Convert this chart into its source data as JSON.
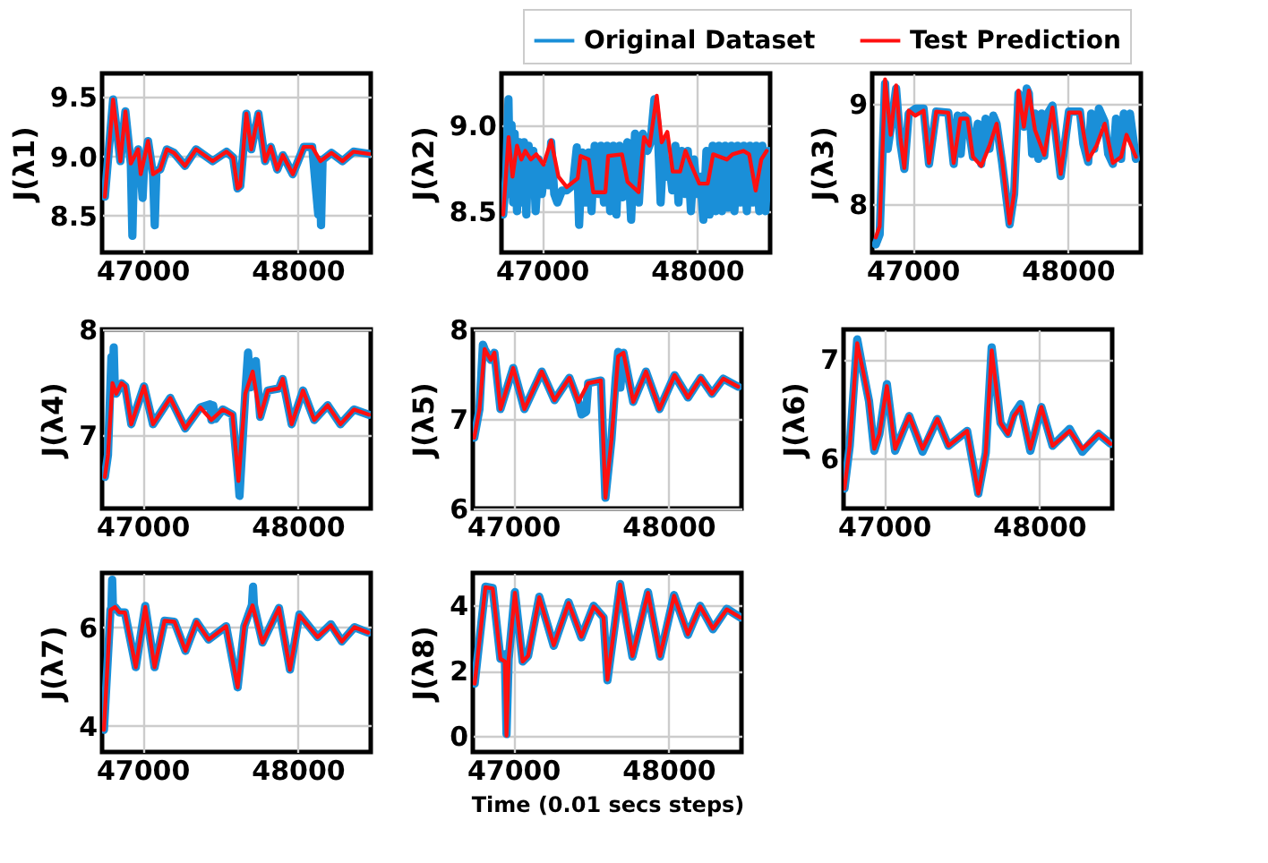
{
  "chart_data": [
    {
      "type": "line",
      "ylabel": "J(λ1)",
      "xlim": [
        46740,
        48470
      ],
      "xticks": [
        47000,
        48000
      ],
      "ylim": [
        8.19,
        9.7
      ],
      "yticks": [
        8.5,
        {
          "value": 9.0,
          "label": "9.0"
        },
        9.5
      ],
      "grid": true,
      "legend": "top right",
      "series": [
        {
          "name": "Original Dataset",
          "color": "#1a8fd8",
          "x": [
            46758,
            46811,
            46858,
            46890,
            46925,
            46935,
            46945,
            46972,
            46989,
            47001,
            47010,
            47036,
            47068,
            47079,
            47090,
            47114,
            47157,
            47203,
            47274,
            47345,
            47452,
            47541,
            47584,
            47612,
            47630,
            47669,
            47701,
            47747,
            47790,
            47826,
            47868,
            47904,
            47968,
            48039,
            48093,
            48132,
            48140,
            48150,
            48160,
            48217,
            48288,
            48359,
            48466
          ],
          "values": [
            8.66,
            9.48,
            8.96,
            9.38,
            8.94,
            8.33,
            8.9,
            9.06,
            8.85,
            8.65,
            8.9,
            9.13,
            8.85,
            8.42,
            8.88,
            8.89,
            9.06,
            9.03,
            8.92,
            9.06,
            8.96,
            9.04,
            8.99,
            8.73,
            8.75,
            9.36,
            9.06,
            9.36,
            8.96,
            9.08,
            8.89,
            9.01,
            8.85,
            9.08,
            9.08,
            8.51,
            8.97,
            8.42,
            8.97,
            9.03,
            8.96,
            9.04,
            9.02
          ]
        },
        {
          "name": "Test Prediction",
          "color": "#ff1010",
          "x": [
            46758,
            46811,
            46858,
            46890,
            46925,
            46972,
            46989,
            47036,
            47068,
            47114,
            47157,
            47203,
            47274,
            47345,
            47452,
            47541,
            47584,
            47612,
            47630,
            47669,
            47701,
            47747,
            47790,
            47826,
            47868,
            47904,
            47968,
            48039,
            48093,
            48146,
            48217,
            48288,
            48359,
            48466
          ],
          "values": [
            8.66,
            9.48,
            8.96,
            9.38,
            8.94,
            9.06,
            8.85,
            9.13,
            8.85,
            8.89,
            9.06,
            9.03,
            8.92,
            9.06,
            8.96,
            9.04,
            8.99,
            8.73,
            8.75,
            9.36,
            9.06,
            9.36,
            8.96,
            9.08,
            8.89,
            9.01,
            8.85,
            9.08,
            9.08,
            8.96,
            9.03,
            8.96,
            9.04,
            9.02
          ]
        }
      ]
    },
    {
      "type": "line",
      "ylabel": "J(λ2)",
      "xlim": [
        46740,
        48470
      ],
      "xticks": [
        47000,
        48000
      ],
      "ylim": [
        8.26,
        9.3
      ],
      "yticks": [
        8.5,
        {
          "value": 9.0,
          "label": "9.0"
        }
      ],
      "grid": true,
      "series": [
        {
          "color": "#1a8fd8",
          "x": [
            46751,
            46770,
            46785,
            46795,
            46805,
            46815,
            46825,
            46840,
            46855,
            46870,
            46885,
            46900,
            46915,
            46930,
            46945,
            46960,
            46980,
            47000,
            47020,
            47045,
            47060,
            47080,
            47100,
            47130,
            47160,
            47200,
            47225,
            47240,
            47260,
            47280,
            47300,
            47320,
            47340,
            47360,
            47380,
            47400,
            47420,
            47440,
            47460,
            47480,
            47500,
            47520,
            47550,
            47575,
            47600,
            47625,
            47650,
            47680,
            47700,
            47725,
            47745,
            47765,
            47785,
            47800,
            47820,
            47840,
            47860,
            47880,
            47900,
            47920,
            47940,
            47960,
            47980,
            48000,
            48020,
            48040,
            48060,
            48080,
            48100,
            48120,
            48140,
            48160,
            48180,
            48200,
            48220,
            48240,
            48260,
            48280,
            48300,
            48320,
            48340,
            48360,
            48380,
            48400,
            48420,
            48440,
            48460
          ],
          "values": [
            8.48,
            8.7,
            9.15,
            8.6,
            9.0,
            8.55,
            8.95,
            8.5,
            8.9,
            8.55,
            8.9,
            8.48,
            8.88,
            8.6,
            8.85,
            8.5,
            8.8,
            8.6,
            8.75,
            8.65,
            8.9,
            8.6,
            8.55,
            8.62,
            8.62,
            8.65,
            8.87,
            8.42,
            8.84,
            8.55,
            8.84,
            8.5,
            8.88,
            8.6,
            8.88,
            8.55,
            8.88,
            8.5,
            8.88,
            8.48,
            8.88,
            8.58,
            8.9,
            8.45,
            8.95,
            8.55,
            8.95,
            8.85,
            8.9,
            9.15,
            9.0,
            8.55,
            8.9,
            8.7,
            8.78,
            8.62,
            8.88,
            8.55,
            8.85,
            8.6,
            8.85,
            8.5,
            8.8,
            8.6,
            8.7,
            8.45,
            8.85,
            8.48,
            8.88,
            8.5,
            8.88,
            8.5,
            8.88,
            8.52,
            8.88,
            8.5,
            8.88,
            8.55,
            8.88,
            8.5,
            8.88,
            8.55,
            8.88,
            8.5,
            8.88,
            8.5,
            8.85
          ]
        },
        {
          "color": "#ff1010",
          "x": [
            46751,
            46786,
            46811,
            46840,
            46868,
            46893,
            46929,
            46964,
            47011,
            47060,
            47107,
            47160,
            47231,
            47249,
            47302,
            47331,
            47409,
            47427,
            47516,
            47552,
            47623,
            47658,
            47694,
            47740,
            47772,
            47808,
            47843,
            47890,
            47925,
            47961,
            48014,
            48068,
            48103,
            48192,
            48228,
            48299,
            48335,
            48377,
            48413,
            48448
          ],
          "values": [
            8.48,
            8.93,
            8.7,
            8.88,
            8.8,
            8.85,
            8.8,
            8.83,
            8.77,
            8.91,
            8.7,
            8.64,
            8.69,
            8.82,
            8.8,
            8.61,
            8.61,
            8.82,
            8.83,
            8.67,
            8.61,
            8.93,
            8.88,
            9.17,
            8.9,
            8.96,
            8.73,
            8.73,
            8.85,
            8.77,
            8.66,
            8.66,
            8.83,
            8.8,
            8.83,
            8.85,
            8.83,
            8.62,
            8.8,
            8.85
          ]
        }
      ]
    },
    {
      "type": "line",
      "ylabel": "J(λ3)",
      "xlim": [
        46740,
        48470
      ],
      "xticks": [
        47000,
        48000
      ],
      "ylim": [
        7.52,
        9.3
      ],
      "yticks": [
        8,
        9
      ],
      "grid": true,
      "series": [
        {
          "color": "#1a8fd8",
          "x": [
            46763,
            46788,
            46823,
            46840,
            46859,
            46894,
            46922,
            46947,
            46975,
            47018,
            47071,
            47106,
            47152,
            47230,
            47265,
            47290,
            47310,
            47330,
            47353,
            47389,
            47420,
            47442,
            47470,
            47495,
            47520,
            47541,
            47576,
            47625,
            47654,
            47682,
            47717,
            47735,
            47749,
            47770,
            47788,
            47810,
            47830,
            47848,
            47870,
            47901,
            47954,
            48007,
            48078,
            48100,
            48131,
            48150,
            48170,
            48200,
            48237,
            48260,
            48290,
            48310,
            48343,
            48360,
            48378,
            48400,
            48438
          ],
          "values": [
            7.6,
            7.7,
            9.2,
            8.55,
            8.75,
            9.15,
            8.6,
            8.35,
            8.9,
            8.95,
            8.95,
            8.4,
            8.92,
            8.91,
            8.4,
            8.88,
            8.5,
            8.88,
            8.85,
            8.47,
            8.8,
            8.4,
            8.85,
            8.55,
            8.88,
            8.8,
            8.42,
            7.8,
            8.1,
            9.1,
            8.77,
            9.15,
            9.1,
            8.5,
            8.9,
            8.45,
            8.9,
            8.48,
            8.9,
            8.98,
            8.28,
            8.92,
            8.92,
            8.6,
            8.42,
            8.9,
            8.55,
            8.95,
            8.82,
            8.5,
            8.4,
            8.85,
            8.45,
            8.9,
            8.7,
            8.9,
            8.45
          ]
        },
        {
          "color": "#ff1010",
          "x": [
            46763,
            46788,
            46823,
            46859,
            46894,
            46922,
            46947,
            46975,
            47018,
            47071,
            47106,
            47152,
            47230,
            47265,
            47307,
            47353,
            47389,
            47442,
            47495,
            47541,
            47576,
            47625,
            47654,
            47682,
            47717,
            47749,
            47788,
            47848,
            47901,
            47954,
            48007,
            48078,
            48131,
            48184,
            48237,
            48290,
            48343,
            48378,
            48438
          ],
          "values": [
            7.67,
            7.78,
            9.24,
            8.69,
            9.18,
            8.66,
            8.36,
            8.93,
            8.88,
            8.93,
            8.41,
            8.92,
            8.91,
            8.41,
            8.85,
            8.85,
            8.47,
            8.38,
            8.58,
            8.8,
            8.44,
            7.81,
            8.11,
            9.13,
            8.77,
            9.13,
            8.74,
            8.49,
            8.96,
            8.3,
            8.91,
            8.91,
            8.44,
            8.58,
            8.8,
            8.41,
            8.47,
            8.69,
            8.47
          ]
        }
      ]
    },
    {
      "type": "line",
      "ylabel": "J(λ4)",
      "xlim": [
        46740,
        48470
      ],
      "xticks": [
        47000,
        48000
      ],
      "ylim": [
        6.3,
        8.0
      ],
      "yticks": [
        7,
        8
      ],
      "grid": true,
      "series": [
        {
          "color": "#1a8fd8",
          "x": [
            46758,
            46778,
            46800,
            46807,
            46815,
            46822,
            46831,
            46865,
            46889,
            46928,
            47010,
            47068,
            47179,
            47275,
            47372,
            47435,
            47444,
            47455,
            47470,
            47517,
            47580,
            47618,
            47625,
            47662,
            47680,
            47695,
            47710,
            47730,
            47758,
            47807,
            47879,
            47903,
            47961,
            48034,
            48106,
            48193,
            48275,
            48362,
            48459
          ],
          "values": [
            6.6,
            6.81,
            7.74,
            7.45,
            7.83,
            7.45,
            7.39,
            7.49,
            7.46,
            7.1,
            7.46,
            7.1,
            7.35,
            7.06,
            7.26,
            7.29,
            7.14,
            7.28,
            7.15,
            7.24,
            7.19,
            6.56,
            6.42,
            7.39,
            7.78,
            7.45,
            7.6,
            7.7,
            7.17,
            7.42,
            7.44,
            7.53,
            7.1,
            7.42,
            7.14,
            7.28,
            7.1,
            7.24,
            7.19
          ]
        },
        {
          "color": "#ff1010",
          "x": [
            46758,
            46778,
            46807,
            46831,
            46865,
            46889,
            46928,
            47010,
            47068,
            47179,
            47275,
            47372,
            47444,
            47517,
            47580,
            47618,
            47662,
            47710,
            47758,
            47807,
            47879,
            47903,
            47961,
            48034,
            48106,
            48193,
            48275,
            48362,
            48459
          ],
          "values": [
            6.6,
            6.81,
            7.49,
            7.39,
            7.49,
            7.46,
            7.1,
            7.46,
            7.1,
            7.35,
            7.06,
            7.26,
            7.14,
            7.24,
            7.19,
            6.56,
            7.39,
            7.6,
            7.17,
            7.42,
            7.44,
            7.53,
            7.1,
            7.42,
            7.14,
            7.28,
            7.1,
            7.24,
            7.19
          ]
        }
      ]
    },
    {
      "type": "line",
      "ylabel": "J(λ5)",
      "xlim": [
        46740,
        48470
      ],
      "xticks": [
        47000,
        48000
      ],
      "ylim": [
        6,
        8
      ],
      "yticks": [
        6,
        7,
        8
      ],
      "grid": true,
      "series": [
        {
          "color": "#1a8fd8",
          "x": [
            46749,
            46783,
            46805,
            46816,
            46855,
            46879,
            46918,
            47000,
            47072,
            47184,
            47266,
            47362,
            47420,
            47440,
            47470,
            47483,
            47565,
            47594,
            47633,
            47660,
            47676,
            47690,
            47710,
            47773,
            47855,
            47942,
            48039,
            48126,
            48208,
            48280,
            48353,
            48449
          ],
          "values": [
            6.79,
            7.11,
            7.83,
            7.78,
            7.66,
            7.74,
            7.11,
            7.57,
            7.11,
            7.53,
            7.21,
            7.46,
            7.19,
            7.05,
            7.08,
            7.4,
            7.43,
            6.12,
            6.77,
            7.45,
            7.75,
            7.35,
            7.74,
            7.19,
            7.53,
            7.11,
            7.49,
            7.24,
            7.46,
            7.28,
            7.45,
            7.36
          ]
        },
        {
          "color": "#ff1010",
          "x": [
            46749,
            46783,
            46816,
            46855,
            46879,
            46918,
            47000,
            47072,
            47184,
            47266,
            47362,
            47420,
            47483,
            47565,
            47594,
            47633,
            47676,
            47710,
            47773,
            47855,
            47942,
            48039,
            48126,
            48208,
            48280,
            48353,
            48449
          ],
          "values": [
            6.79,
            7.11,
            7.78,
            7.66,
            7.74,
            7.11,
            7.57,
            7.11,
            7.53,
            7.21,
            7.46,
            7.19,
            7.4,
            7.43,
            6.12,
            6.77,
            7.7,
            7.74,
            7.19,
            7.53,
            7.11,
            7.49,
            7.24,
            7.46,
            7.28,
            7.45,
            7.36
          ]
        }
      ]
    },
    {
      "type": "line",
      "ylabel": "J(λ6)",
      "xlim": [
        46740,
        48470
      ],
      "xticks": [
        47000,
        48000
      ],
      "ylim": [
        5.5,
        7.3
      ],
      "yticks": [
        6,
        7
      ],
      "grid": true,
      "series": [
        {
          "color": "#1a8fd8",
          "x": [
            46746,
            46780,
            46828,
            46866,
            46904,
            46938,
            46971,
            47019,
            47072,
            47163,
            47249,
            47344,
            47416,
            47536,
            47608,
            47656,
            47694,
            47751,
            47799,
            47837,
            47880,
            47943,
            48014,
            48086,
            48196,
            48278,
            48383,
            48460
          ],
          "values": [
            5.7,
            6.13,
            7.2,
            6.88,
            6.58,
            6.08,
            6.25,
            6.75,
            6.08,
            6.43,
            6.07,
            6.4,
            6.13,
            6.28,
            5.65,
            6.06,
            7.12,
            6.36,
            6.25,
            6.45,
            6.55,
            6.08,
            6.52,
            6.13,
            6.3,
            6.07,
            6.25,
            6.15
          ]
        },
        {
          "color": "#ff1010",
          "x": [
            46746,
            46780,
            46828,
            46866,
            46904,
            46938,
            46971,
            47019,
            47072,
            47163,
            47249,
            47344,
            47416,
            47536,
            47608,
            47656,
            47694,
            47751,
            47799,
            47837,
            47880,
            47943,
            48014,
            48086,
            48196,
            48278,
            48383,
            48460
          ],
          "values": [
            5.7,
            6.13,
            7.16,
            6.88,
            6.58,
            6.1,
            6.25,
            6.73,
            6.1,
            6.43,
            6.1,
            6.4,
            6.13,
            6.28,
            5.65,
            6.06,
            7.09,
            6.36,
            6.25,
            6.43,
            6.52,
            6.1,
            6.52,
            6.13,
            6.28,
            6.1,
            6.25,
            6.15
          ]
        }
      ]
    },
    {
      "type": "line",
      "ylabel": "J(λ7)",
      "xlim": [
        46740,
        48470
      ],
      "xticks": [
        47000,
        48000
      ],
      "ylim": [
        3.47,
        7.1
      ],
      "yticks": [
        4,
        6
      ],
      "grid": true,
      "series": [
        {
          "color": "#1a8fd8",
          "x": [
            46752,
            46794,
            46800,
            46805,
            46810,
            46823,
            46851,
            46887,
            46957,
            47018,
            47078,
            47142,
            47206,
            47277,
            47348,
            47426,
            47539,
            47613,
            47656,
            47705,
            47712,
            47718,
            47773,
            47879,
            47950,
            48011,
            48128,
            48213,
            48284,
            48365,
            48454
          ],
          "values": [
            3.92,
            6.35,
            6.4,
            6.96,
            6.4,
            6.41,
            6.3,
            6.3,
            5.19,
            6.43,
            5.19,
            6.13,
            6.11,
            5.52,
            6.11,
            5.75,
            6.02,
            4.78,
            6.02,
            6.45,
            6.82,
            6.45,
            5.69,
            6.39,
            5.14,
            6.26,
            5.8,
            6.06,
            5.71,
            6.0,
            5.89
          ]
        },
        {
          "color": "#ff1010",
          "x": [
            46752,
            46794,
            46823,
            46851,
            46887,
            46957,
            47018,
            47078,
            47142,
            47206,
            47277,
            47348,
            47426,
            47539,
            47613,
            47656,
            47709,
            47773,
            47879,
            47950,
            48011,
            48128,
            48213,
            48284,
            48365,
            48454
          ],
          "values": [
            3.92,
            6.35,
            6.41,
            6.3,
            6.3,
            5.19,
            6.41,
            5.19,
            6.13,
            6.11,
            5.52,
            6.11,
            5.75,
            6.02,
            4.78,
            6.02,
            6.44,
            5.69,
            6.39,
            5.14,
            6.24,
            5.8,
            6.04,
            5.71,
            6.0,
            5.89
          ]
        }
      ]
    },
    {
      "type": "line",
      "ylabel": "J(λ8)",
      "xlabel": "Time (0.01 secs steps)",
      "xlim": [
        46740,
        48470
      ],
      "xticks": [
        47000,
        48000
      ],
      "ylim": [
        -0.5,
        5.0
      ],
      "yticks": [
        0,
        2,
        4
      ],
      "grid": true,
      "series": [
        {
          "color": "#1a8fd8",
          "x": [
            46752,
            46821,
            46868,
            46918,
            46946,
            46957,
            46971,
            47011,
            47061,
            47096,
            47168,
            47261,
            47357,
            47439,
            47518,
            47582,
            47607,
            47689,
            47768,
            47868,
            47946,
            48036,
            48125,
            48204,
            48286,
            48375,
            48464
          ],
          "values": [
            1.6,
            4.58,
            4.54,
            2.36,
            2.5,
            0.05,
            2.36,
            4.41,
            2.28,
            2.45,
            4.27,
            2.76,
            4.1,
            3.02,
            3.99,
            3.63,
            1.7,
            4.66,
            2.43,
            4.41,
            2.43,
            4.32,
            3.1,
            3.99,
            3.27,
            3.9,
            3.63
          ]
        },
        {
          "color": "#ff1010",
          "x": [
            46752,
            46821,
            46868,
            46918,
            46946,
            46957,
            46971,
            47011,
            47061,
            47096,
            47168,
            47261,
            47357,
            47439,
            47518,
            47582,
            47607,
            47689,
            47768,
            47868,
            47946,
            48036,
            48125,
            48204,
            48286,
            48375,
            48464
          ],
          "values": [
            1.6,
            4.56,
            4.52,
            2.36,
            2.28,
            0.0,
            2.36,
            4.39,
            2.28,
            2.45,
            4.25,
            2.78,
            4.08,
            3.04,
            3.97,
            3.63,
            1.72,
            4.64,
            2.45,
            4.39,
            2.45,
            4.3,
            3.12,
            3.97,
            3.29,
            3.88,
            3.63
          ]
        }
      ]
    }
  ]
}
